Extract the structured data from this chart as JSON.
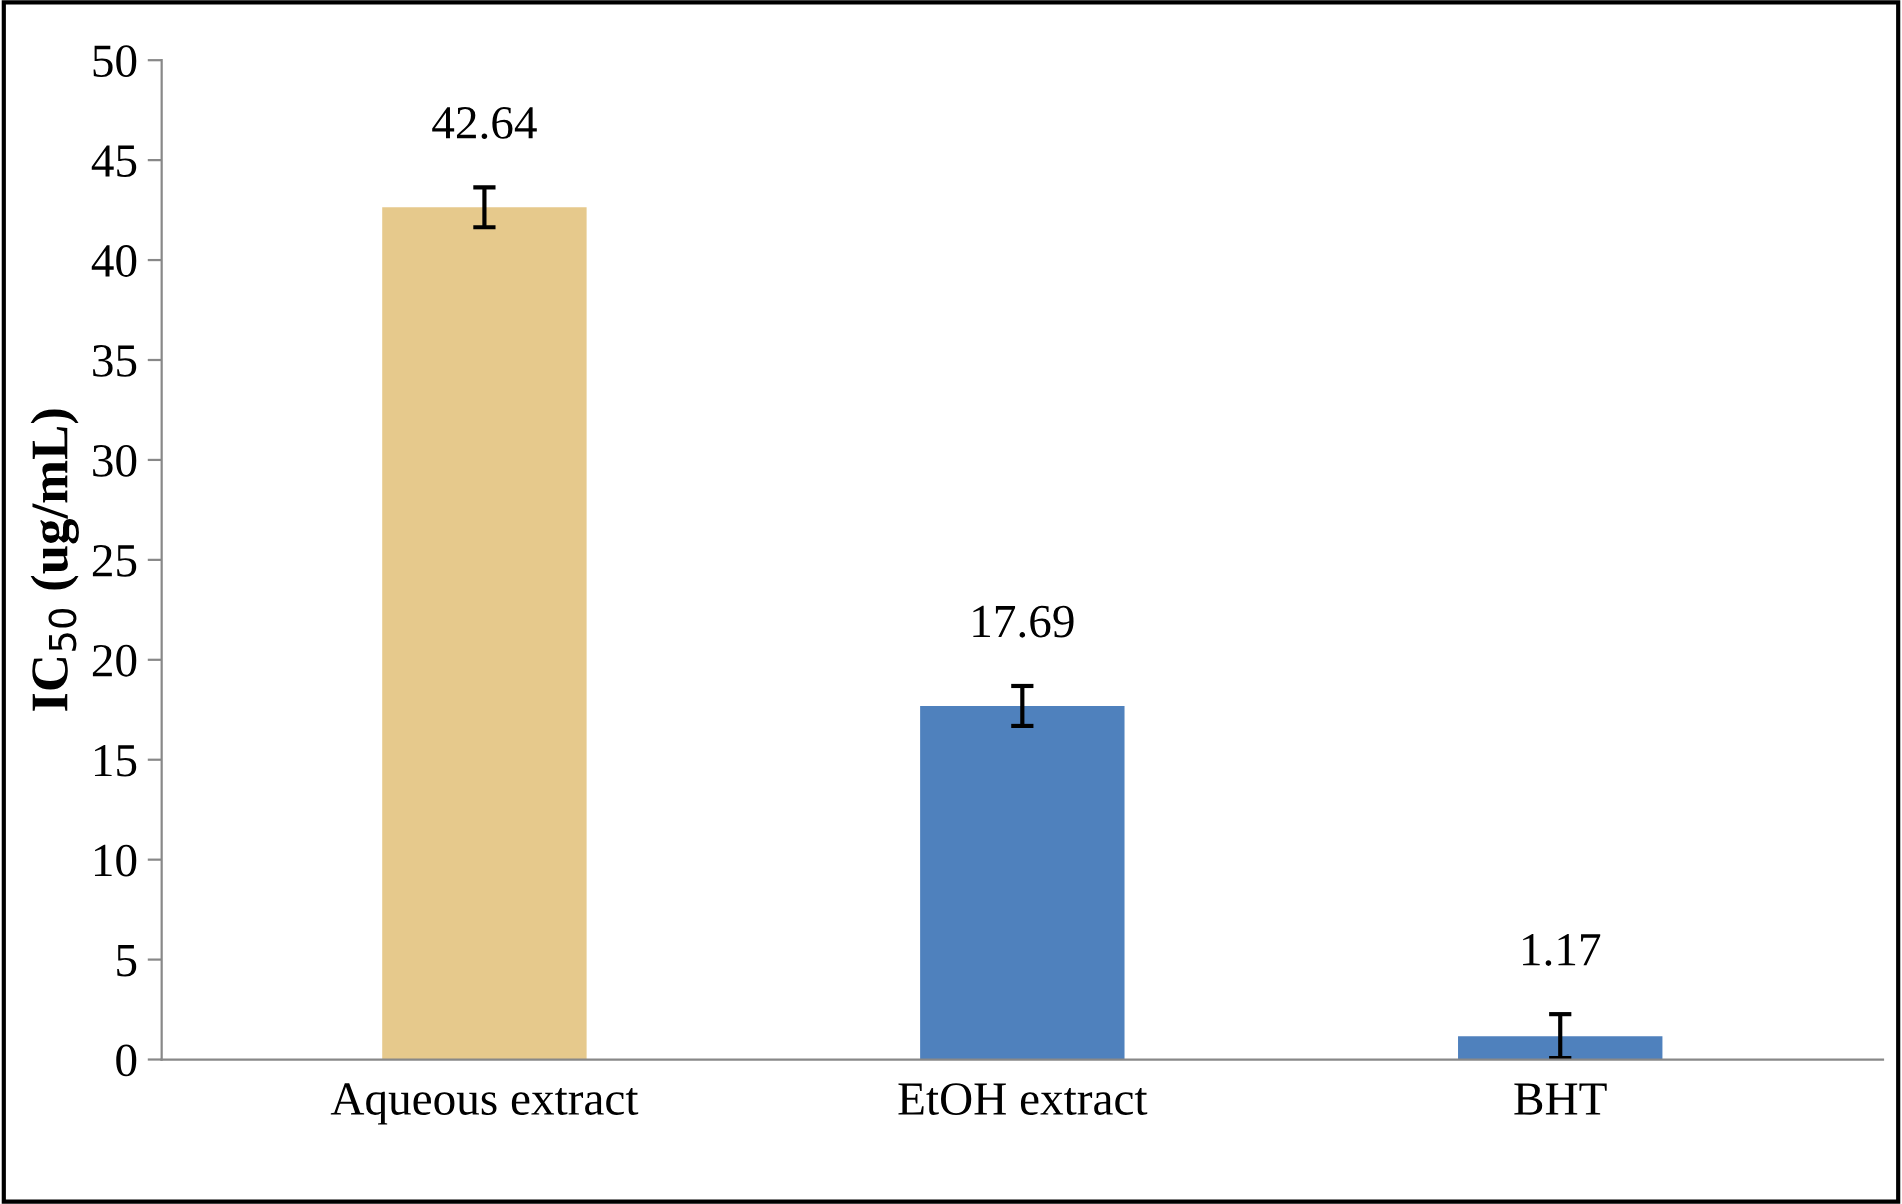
{
  "chart_data": {
    "type": "bar",
    "ylabel": "IC$_{50}$ (ug/mL)",
    "categories": [
      "Aqueous extract",
      "EtOH extract",
      "BHT"
    ],
    "values": [
      42.64,
      17.69,
      1.17
    ],
    "errors": [
      1.0,
      1.0,
      1.1
    ],
    "colors": [
      "#e6c98c",
      "#4f81bd",
      "#4f81bd"
    ],
    "ylim": [
      0,
      50
    ],
    "yticks": [
      0,
      5,
      10,
      15,
      20,
      25,
      30,
      35,
      40,
      45,
      50
    ],
    "data_labels": true,
    "grid": false,
    "legend": false
  }
}
